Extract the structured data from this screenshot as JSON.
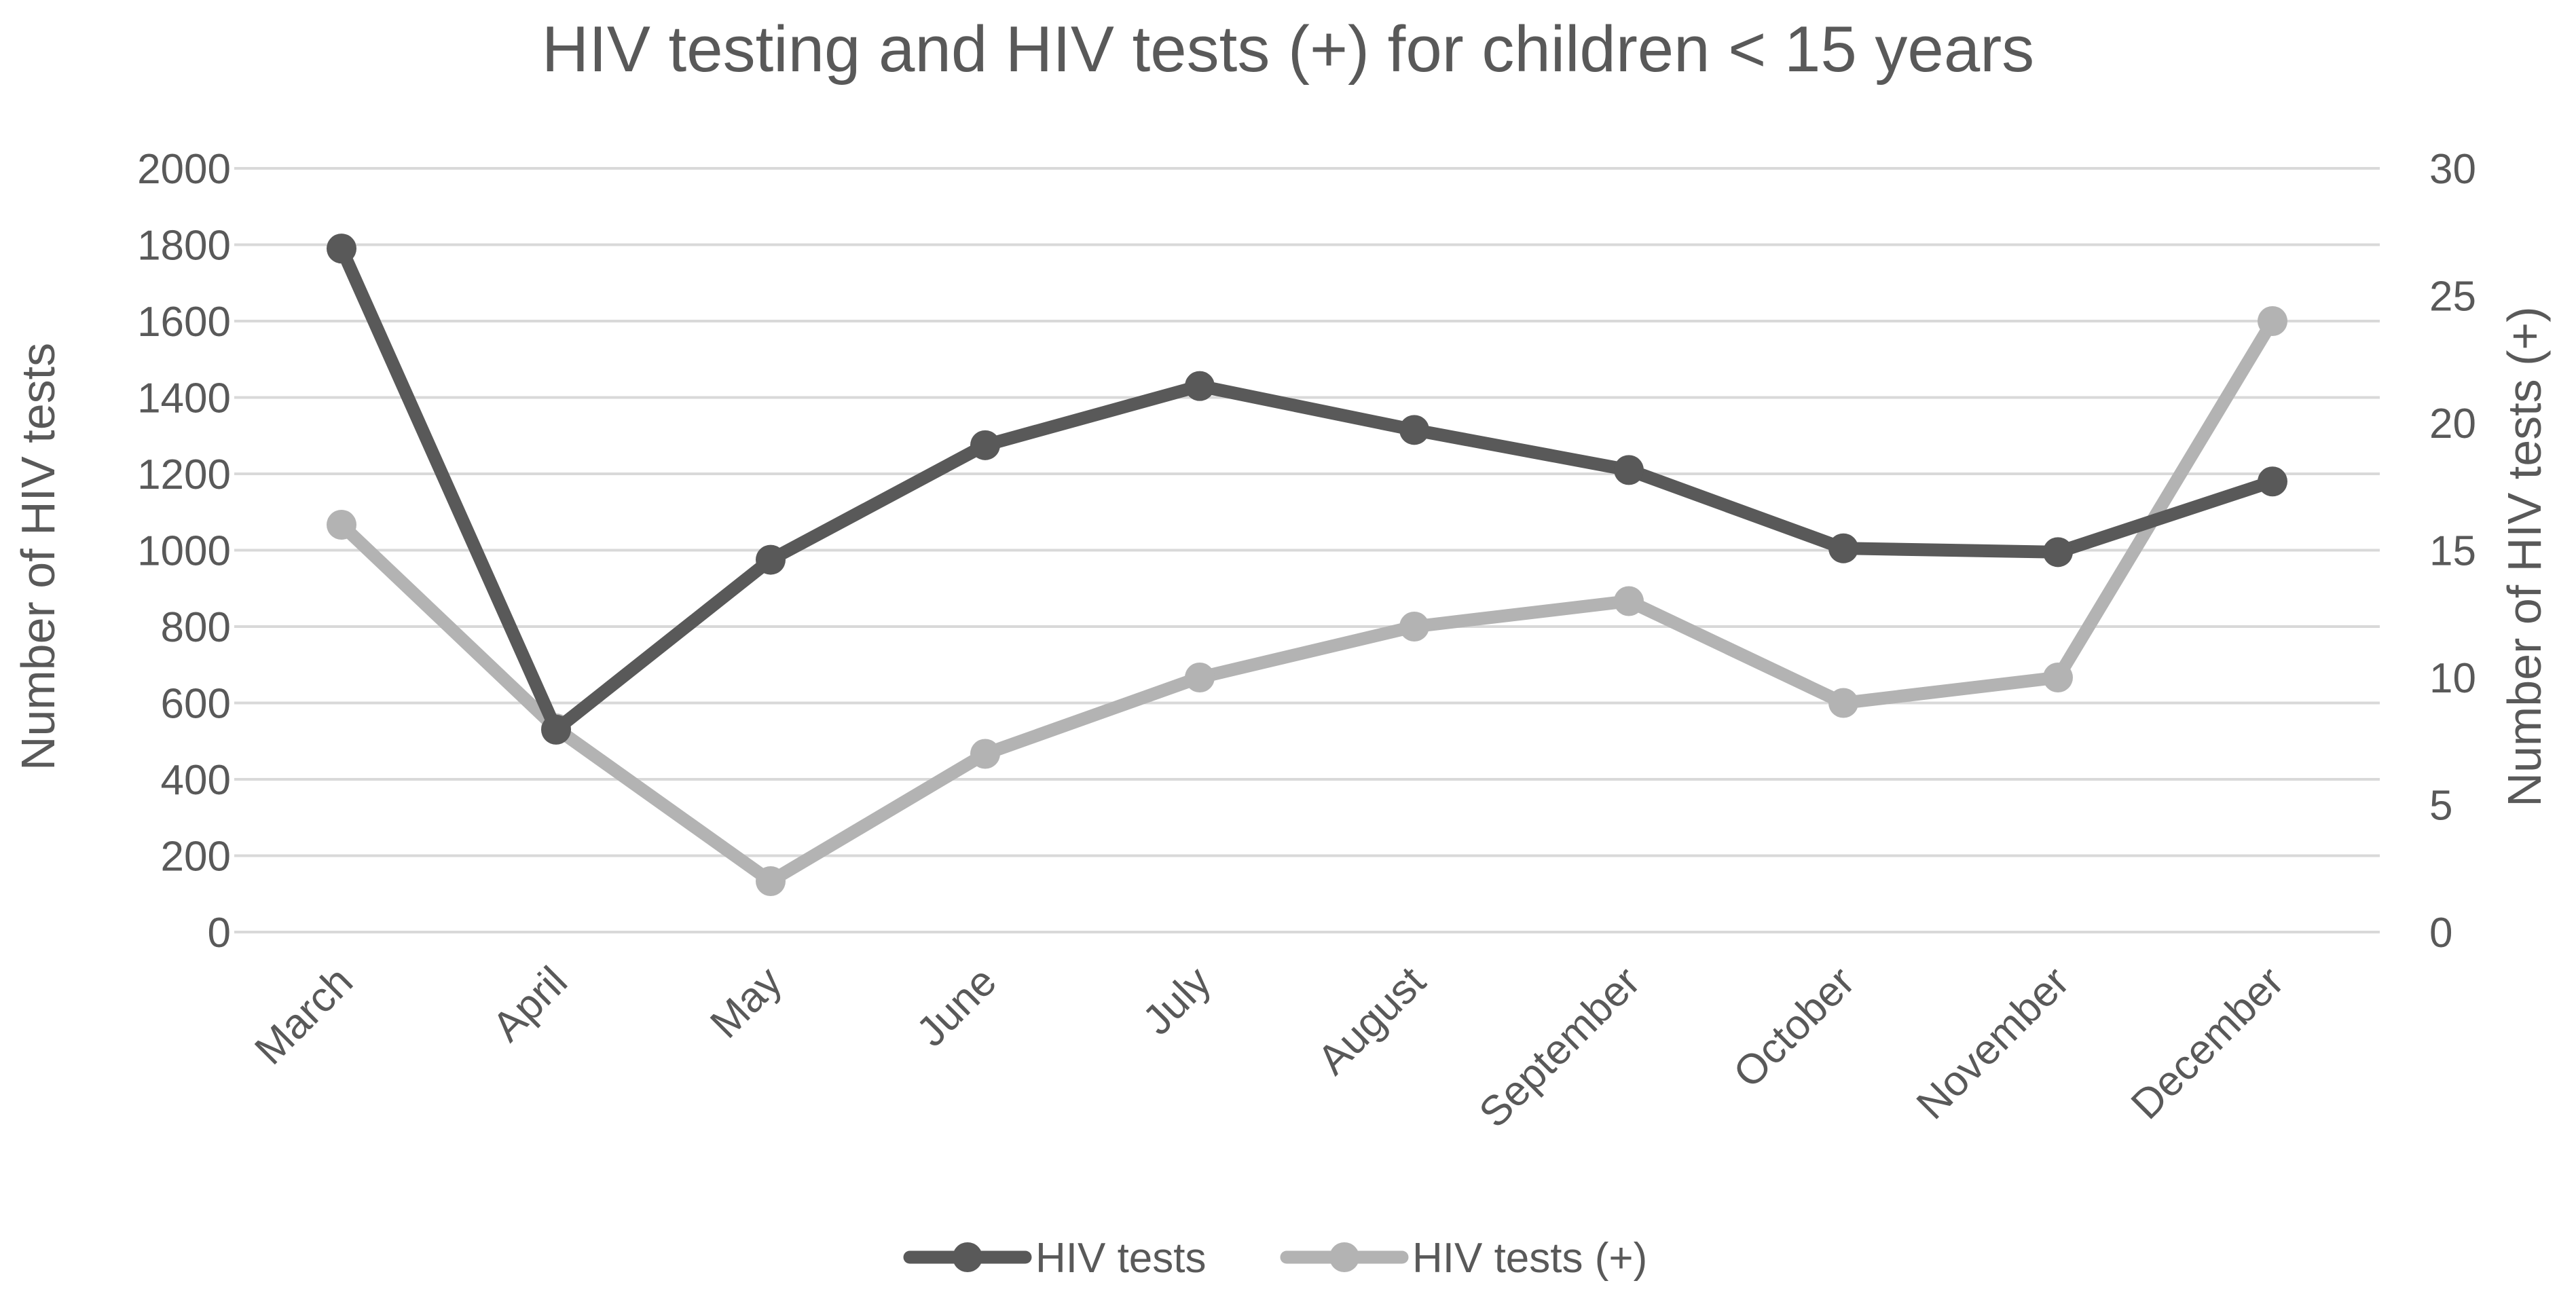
{
  "chart_data": {
    "type": "line",
    "title": "HIV testing and HIV tests (+) for children < 15 years",
    "categories": [
      "March",
      "April",
      "May",
      "June",
      "July",
      "August",
      "September",
      "October",
      "November",
      "December"
    ],
    "ylabel": "Number of HIV tests",
    "y2label": "Number of HIV tests (+)",
    "ylim": [
      0,
      2000
    ],
    "y2lim": [
      0,
      30
    ],
    "yticks": [
      0,
      200,
      400,
      600,
      800,
      1000,
      1200,
      1400,
      1600,
      1800,
      2000
    ],
    "y2ticks": [
      0,
      5,
      10,
      15,
      20,
      25,
      30
    ],
    "grid": true,
    "legend_position": "bottom",
    "series": [
      {
        "name": "HIV tests",
        "axis": "left",
        "color": "#595959",
        "values": [
          1790,
          530,
          975,
          1275,
          1430,
          1315,
          1210,
          1005,
          995,
          1180
        ]
      },
      {
        "name": "HIV tests (+)",
        "axis": "right",
        "color": "#b3b3b3",
        "values": [
          16,
          8,
          2,
          7,
          10,
          12,
          13,
          9,
          10,
          24
        ]
      }
    ]
  }
}
